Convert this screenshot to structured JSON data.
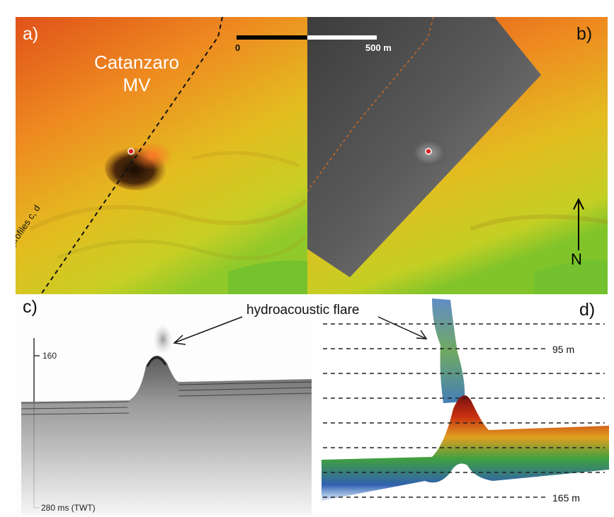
{
  "panels": {
    "a": {
      "label": "a)",
      "place_name": "Catanzaro",
      "place_sub": "MV",
      "profile_label": "profiles c, d"
    },
    "b": {
      "label": "b)",
      "north": "N"
    },
    "c": {
      "label": "c)",
      "tick_top": "160",
      "tick_bottom": "280 ms (TWT)"
    },
    "d": {
      "label": "d)",
      "depth_top": "95 m",
      "depth_bottom": "165 m"
    }
  },
  "scale_bar": {
    "start": "0",
    "end": "500 m"
  },
  "annotation": {
    "text": "hydroacoustic flare"
  }
}
